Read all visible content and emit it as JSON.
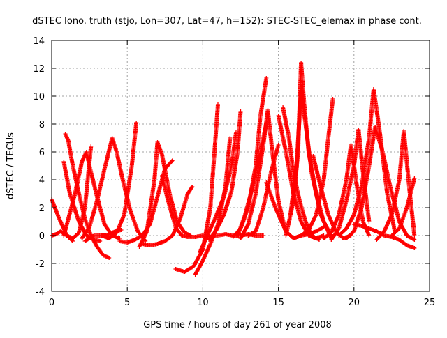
{
  "chart_data": {
    "type": "scatter",
    "title": "dSTEC Iono. truth (stjo, Lon=307, Lat=47, h=152): STEC-STEC_elemax in phase cont.",
    "xlabel": "GPS time / hours of day 261 of year 2008",
    "ylabel": "dSTEC  / TECUs",
    "xlim": [
      0,
      25
    ],
    "ylim": [
      -4,
      14
    ],
    "grid": true,
    "x_ticks": [
      0,
      5,
      10,
      15,
      20,
      25
    ],
    "y_ticks": [
      -4,
      -2,
      0,
      2,
      4,
      6,
      8,
      10,
      12,
      14
    ],
    "marker": "+",
    "color": "#ff0000",
    "series": [
      {
        "x": [
          0.0,
          0.5,
          1.0,
          1.4
        ],
        "y": [
          2.6,
          1.2,
          0.0,
          -0.4
        ]
      },
      {
        "x": [
          0.0,
          0.3,
          0.6,
          1.0,
          1.4,
          1.8,
          2.2,
          2.6
        ],
        "y": [
          0.0,
          0.1,
          0.3,
          0.0,
          -0.2,
          0.2,
          2.0,
          6.4
        ]
      },
      {
        "x": [
          0.9,
          1.1,
          1.4,
          1.8,
          2.2,
          2.6,
          3.0,
          3.4,
          3.8
        ],
        "y": [
          7.3,
          6.8,
          5.0,
          3.0,
          1.2,
          0.0,
          -0.8,
          -1.4,
          -1.6
        ]
      },
      {
        "x": [
          0.8,
          1.2,
          1.8,
          2.3,
          2.8,
          3.2
        ],
        "y": [
          5.3,
          3.0,
          1.0,
          0.0,
          -0.3,
          -0.4
        ]
      },
      {
        "x": [
          0.8,
          1.0,
          1.5,
          2.0,
          2.3,
          2.5,
          3.0,
          3.5,
          4.0,
          4.5
        ],
        "y": [
          0.0,
          0.8,
          2.8,
          5.3,
          6.0,
          5.0,
          2.8,
          0.8,
          0.0,
          -0.2
        ]
      },
      {
        "x": [
          2.0,
          2.5,
          3.0,
          3.5,
          4.0,
          4.3,
          4.7,
          5.2,
          5.7,
          6.2
        ],
        "y": [
          -0.2,
          0.6,
          2.5,
          4.8,
          7.0,
          6.0,
          4.0,
          1.8,
          0.3,
          -0.4
        ]
      },
      {
        "x": [
          2.2,
          2.8,
          3.3,
          3.6,
          3.8,
          4.2,
          4.6
        ],
        "y": [
          -0.4,
          0.0,
          0.0,
          0.0,
          0.1,
          0.3,
          0.4
        ]
      },
      {
        "x": [
          3.3,
          3.8,
          4.3,
          4.8,
          5.3,
          5.6
        ],
        "y": [
          0.0,
          -0.2,
          0.2,
          1.5,
          5.0,
          8.1
        ]
      },
      {
        "x": [
          4.5,
          5.0,
          5.5,
          6.0,
          6.5,
          7.0,
          7.5,
          8.0
        ],
        "y": [
          -0.4,
          -0.5,
          -0.3,
          0.0,
          0.8,
          2.8,
          4.8,
          5.4
        ]
      },
      {
        "x": [
          5.8,
          6.3,
          6.8,
          7.0,
          7.3,
          7.8,
          8.3,
          8.8,
          9.2
        ],
        "y": [
          -0.8,
          0.3,
          4.0,
          6.7,
          5.8,
          3.0,
          1.0,
          0.2,
          0.0
        ]
      },
      {
        "x": [
          6.0,
          6.5,
          7.0,
          7.5,
          8.0,
          8.5,
          9.0,
          9.3
        ],
        "y": [
          -0.6,
          -0.7,
          -0.6,
          -0.4,
          0.0,
          1.2,
          3.0,
          3.5
        ]
      },
      {
        "x": [
          7.3,
          7.7,
          8.2,
          8.6,
          9.0,
          9.5,
          10.0
        ],
        "y": [
          4.3,
          2.5,
          0.6,
          0.0,
          -0.1,
          -0.1,
          0.0
        ]
      },
      {
        "x": [
          8.2,
          8.8,
          9.4,
          10.0,
          10.5,
          11.0
        ],
        "y": [
          -2.4,
          -2.6,
          -2.2,
          -1.0,
          2.0,
          9.4
        ]
      },
      {
        "x": [
          9.5,
          10.0,
          10.5,
          11.0,
          11.5,
          11.8
        ],
        "y": [
          -2.8,
          -1.8,
          -0.6,
          0.8,
          3.5,
          7.0
        ]
      },
      {
        "x": [
          9.8,
          10.3,
          10.8,
          11.4,
          11.9,
          12.2
        ],
        "y": [
          -1.2,
          0.0,
          1.2,
          2.8,
          5.0,
          7.4
        ]
      },
      {
        "x": [
          10.4,
          10.9,
          11.4,
          11.9,
          12.3,
          12.5
        ],
        "y": [
          -0.3,
          0.4,
          1.5,
          3.2,
          6.0,
          8.9
        ]
      },
      {
        "x": [
          10.0,
          10.5,
          11.0,
          11.5,
          12.0,
          12.5,
          13.0,
          13.5,
          14.0
        ],
        "y": [
          0.0,
          -0.1,
          0.0,
          0.1,
          0.0,
          0.0,
          0.1,
          0.0,
          0.0
        ]
      },
      {
        "x": [
          12.0,
          12.5,
          13.0,
          13.5,
          13.8,
          14.2
        ],
        "y": [
          -0.1,
          0.5,
          2.0,
          5.0,
          8.5,
          11.3
        ]
      },
      {
        "x": [
          12.5,
          13.0,
          13.5,
          14.0,
          14.3,
          14.6,
          15.0,
          15.5
        ],
        "y": [
          -0.2,
          0.8,
          3.0,
          6.5,
          9.0,
          6.0,
          2.5,
          0.2
        ]
      },
      {
        "x": [
          12.3,
          12.8,
          13.3,
          13.8,
          14.2
        ],
        "y": [
          0.0,
          1.5,
          3.5,
          6.0,
          8.0
        ]
      },
      {
        "x": [
          13.0,
          13.5,
          14.0,
          14.5,
          15.0
        ],
        "y": [
          0.0,
          0.3,
          2.0,
          4.5,
          6.5
        ]
      },
      {
        "x": [
          14.2,
          14.8,
          15.5,
          16.0,
          16.5,
          17.0,
          17.5,
          18.0
        ],
        "y": [
          3.8,
          2.0,
          0.3,
          -0.2,
          0.0,
          0.1,
          0.3,
          0.6
        ]
      },
      {
        "x": [
          15.0,
          15.5,
          16.0,
          16.5,
          17.0,
          17.5,
          18.0
        ],
        "y": [
          8.6,
          6.0,
          3.0,
          1.0,
          0.0,
          -0.2,
          0.0
        ]
      },
      {
        "x": [
          15.3,
          15.7,
          16.0,
          16.4,
          16.8,
          17.2,
          17.7
        ],
        "y": [
          9.2,
          7.0,
          4.5,
          2.5,
          1.0,
          0.0,
          -0.3
        ]
      },
      {
        "x": [
          15.5,
          16.0,
          16.3,
          16.5,
          16.7,
          17.0,
          17.5,
          18.0,
          18.5
        ],
        "y": [
          0.0,
          2.5,
          6.0,
          12.4,
          9.5,
          6.0,
          3.0,
          1.0,
          0.0
        ]
      },
      {
        "x": [
          15.8,
          16.2,
          16.5,
          16.8,
          17.2,
          17.8,
          18.5
        ],
        "y": [
          1.5,
          5.0,
          10.4,
          8.0,
          4.5,
          1.5,
          -0.2
        ]
      },
      {
        "x": [
          16.0,
          16.5,
          17.0,
          17.5,
          18.0,
          18.3,
          18.6
        ],
        "y": [
          -0.2,
          0.0,
          0.4,
          1.5,
          4.0,
          7.0,
          9.8
        ]
      },
      {
        "x": [
          17.3,
          17.8,
          18.3,
          18.8,
          19.3,
          19.8
        ],
        "y": [
          5.7,
          3.5,
          1.5,
          0.3,
          -0.2,
          0.0
        ]
      },
      {
        "x": [
          18.0,
          18.5,
          19.0,
          19.5,
          19.8,
          20.2,
          20.6,
          21.0
        ],
        "y": [
          -0.2,
          0.2,
          1.5,
          4.0,
          6.5,
          3.5,
          1.0,
          0.0
        ]
      },
      {
        "x": [
          18.5,
          19.0,
          19.5,
          20.0,
          20.3,
          20.6,
          21.0
        ],
        "y": [
          -0.3,
          0.5,
          2.5,
          5.0,
          7.6,
          4.5,
          1.0
        ]
      },
      {
        "x": [
          19.0,
          19.5,
          20.0,
          20.5,
          21.0,
          21.3,
          21.7,
          22.2,
          22.7
        ],
        "y": [
          0.0,
          0.5,
          1.5,
          3.5,
          7.0,
          10.5,
          7.5,
          3.0,
          0.3
        ]
      },
      {
        "x": [
          19.5,
          20.0,
          20.5,
          21.0,
          21.4,
          21.9,
          22.4,
          23.0,
          23.5,
          24.0
        ],
        "y": [
          -0.2,
          0.3,
          2.0,
          5.0,
          7.8,
          6.0,
          3.5,
          1.0,
          0.0,
          -0.3
        ]
      },
      {
        "x": [
          20.0,
          20.5,
          21.0,
          21.5,
          22.0,
          22.5,
          23.0,
          23.5,
          24.0
        ],
        "y": [
          0.8,
          0.7,
          0.5,
          0.3,
          0.0,
          -0.1,
          -0.3,
          -0.7,
          -0.9
        ]
      },
      {
        "x": [
          21.5,
          22.0,
          22.5,
          23.0,
          23.3,
          23.7,
          24.0
        ],
        "y": [
          -0.3,
          0.3,
          1.5,
          4.0,
          7.5,
          3.0,
          0.0
        ]
      },
      {
        "x": [
          22.5,
          23.0,
          23.5,
          24.0
        ],
        "y": [
          0.0,
          0.5,
          2.0,
          4.1
        ]
      }
    ]
  }
}
